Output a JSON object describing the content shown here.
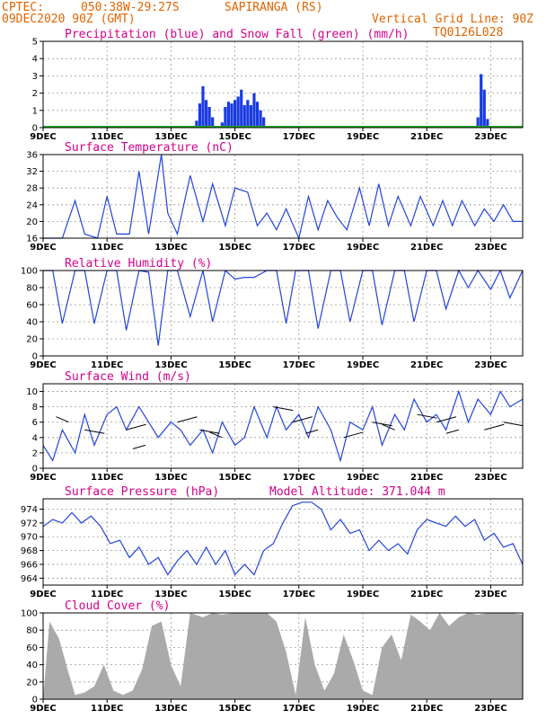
{
  "header": {
    "source": "CPTEC:",
    "coords": "050:38W-29:27S",
    "location": "SAPIRANGA (RS)",
    "run": "09DEC2020 90Z (GMT)",
    "grid_note": "Vertical Grid Line: 90Z",
    "code": "TQ0126L028"
  },
  "x_labels": [
    "9DEC",
    "11DEC",
    "13DEC",
    "15DEC",
    "17DEC",
    "19DEC",
    "21DEC",
    "23DEC"
  ],
  "colors": {
    "line": "#2244dd",
    "precip": "#1a3be0",
    "snow": "#22aa22",
    "cloud": "#aaaaaa",
    "title": "#d4008a",
    "header": "#e06400"
  },
  "chart_data": [
    {
      "id": "precip",
      "type": "bar",
      "title": "Precipitation (blue) and Snow Fall (green) (mm/h)",
      "ylim": [
        0,
        5
      ],
      "yticks": [
        0,
        1,
        2,
        3,
        4,
        5
      ],
      "series": [
        {
          "name": "Precipitation",
          "x": [
            13.8,
            13.9,
            14.0,
            14.1,
            14.2,
            14.3,
            14.6,
            14.7,
            14.8,
            14.9,
            15.0,
            15.1,
            15.2,
            15.3,
            15.4,
            15.5,
            15.6,
            15.7,
            15.8,
            15.9,
            22.6,
            22.7,
            22.8,
            22.9
          ],
          "values": [
            0.4,
            1.4,
            2.4,
            1.6,
            1.2,
            0.6,
            0.3,
            1.2,
            1.5,
            1.4,
            1.6,
            1.8,
            2.2,
            1.3,
            1.6,
            1.3,
            2.0,
            1.5,
            1.0,
            0.6,
            0.6,
            3.1,
            2.2,
            0.5
          ]
        },
        {
          "name": "Snow Fall",
          "values": [
            0
          ]
        }
      ]
    },
    {
      "id": "temp",
      "type": "line",
      "title": "Surface Temperature (nC)",
      "ylim": [
        16,
        36
      ],
      "yticks": [
        16,
        20,
        24,
        28,
        32,
        36
      ],
      "x": [
        9,
        9.6,
        10.0,
        10.3,
        10.7,
        11.0,
        11.3,
        11.7,
        12.0,
        12.3,
        12.7,
        12.9,
        13.2,
        13.6,
        14.0,
        14.3,
        14.7,
        15.0,
        15.4,
        15.7,
        16.0,
        16.3,
        16.6,
        17.0,
        17.3,
        17.6,
        17.9,
        18.2,
        18.5,
        18.9,
        19.2,
        19.5,
        19.8,
        20.1,
        20.5,
        20.8,
        21.2,
        21.5,
        21.8,
        22.1,
        22.5,
        22.8,
        23.1,
        23.4,
        23.7,
        24.0
      ],
      "y": [
        16,
        16,
        25,
        17,
        16,
        26,
        17,
        17,
        32,
        17,
        36,
        22,
        17,
        31,
        20,
        29,
        19,
        28,
        27,
        19,
        22,
        18,
        23,
        16,
        26,
        18,
        25,
        21,
        18,
        28,
        19,
        29,
        19,
        26,
        19,
        26,
        19,
        25,
        19,
        25,
        19,
        23,
        20,
        24,
        20,
        20
      ]
    },
    {
      "id": "rh",
      "type": "line",
      "title": "Relative Humidity (%)",
      "ylim": [
        0,
        100
      ],
      "yticks": [
        0,
        20,
        40,
        60,
        80,
        100
      ],
      "x": [
        9,
        9.3,
        9.6,
        10.0,
        10.3,
        10.6,
        11.0,
        11.3,
        11.6,
        12.0,
        12.3,
        12.6,
        12.9,
        13.2,
        13.6,
        14.0,
        14.3,
        14.7,
        15.0,
        15.3,
        15.6,
        16.0,
        16.3,
        16.6,
        16.9,
        17.3,
        17.6,
        18.0,
        18.3,
        18.6,
        19.0,
        19.3,
        19.6,
        20.0,
        20.3,
        20.6,
        21.0,
        21.3,
        21.6,
        22.0,
        22.3,
        22.6,
        23.0,
        23.3,
        23.6,
        24.0
      ],
      "y": [
        100,
        100,
        38,
        100,
        100,
        38,
        100,
        100,
        30,
        100,
        98,
        12,
        100,
        100,
        46,
        100,
        40,
        100,
        90,
        92,
        92,
        100,
        100,
        38,
        100,
        100,
        32,
        100,
        100,
        40,
        100,
        100,
        36,
        100,
        100,
        40,
        100,
        100,
        55,
        100,
        80,
        100,
        78,
        100,
        68,
        100
      ]
    },
    {
      "id": "wind",
      "type": "line",
      "title": "Surface Wind (m/s)",
      "ylim": [
        0,
        11
      ],
      "yticks": [
        0,
        2,
        4,
        6,
        8,
        10
      ],
      "x": [
        9,
        9.3,
        9.6,
        10.0,
        10.3,
        10.6,
        11.0,
        11.3,
        11.6,
        12.0,
        12.3,
        12.6,
        13.0,
        13.3,
        13.6,
        14.0,
        14.3,
        14.6,
        15.0,
        15.3,
        15.6,
        16.0,
        16.3,
        16.6,
        17.0,
        17.3,
        17.6,
        18.0,
        18.3,
        18.6,
        19.0,
        19.3,
        19.6,
        20.0,
        20.3,
        20.6,
        21.0,
        21.3,
        21.6,
        22.0,
        22.3,
        22.6,
        23.0,
        23.3,
        23.6,
        24.0
      ],
      "y": [
        3,
        1,
        5,
        2,
        7,
        3,
        7,
        8,
        5,
        8,
        6,
        4,
        6,
        5,
        3,
        5,
        2,
        6,
        3,
        4,
        8,
        4,
        8,
        5,
        7,
        4,
        8,
        5,
        1,
        6,
        5,
        8,
        3,
        7,
        5,
        9,
        6,
        7,
        5,
        10,
        6,
        9,
        7,
        10,
        8,
        9
      ]
    },
    {
      "id": "pressure",
      "type": "line",
      "title": "Surface Pressure (hPa)",
      "annotation": "Model Altitude: 371.044 m",
      "ylim": [
        963,
        975.5
      ],
      "yticks": [
        964,
        966,
        968,
        970,
        972,
        974
      ],
      "x": [
        9,
        9.3,
        9.6,
        9.9,
        10.2,
        10.5,
        10.8,
        11.1,
        11.4,
        11.7,
        12.0,
        12.3,
        12.6,
        12.9,
        13.2,
        13.5,
        13.8,
        14.1,
        14.4,
        14.7,
        15.0,
        15.3,
        15.6,
        15.9,
        16.2,
        16.5,
        16.8,
        17.1,
        17.4,
        17.7,
        18.0,
        18.3,
        18.6,
        18.9,
        19.2,
        19.5,
        19.8,
        20.1,
        20.4,
        20.7,
        21.0,
        21.3,
        21.6,
        21.9,
        22.2,
        22.5,
        22.8,
        23.1,
        23.4,
        23.7,
        24.0
      ],
      "y": [
        971.5,
        972.5,
        972,
        973.5,
        972,
        973,
        971.5,
        969,
        969.5,
        967,
        968.5,
        966,
        967,
        964.5,
        966.5,
        968,
        966,
        968.5,
        966,
        968,
        964.5,
        966,
        964.5,
        968,
        969,
        972,
        974.5,
        975,
        975,
        974,
        971,
        972.5,
        970.5,
        971,
        968,
        969.5,
        968,
        969,
        967.5,
        971,
        972.5,
        972,
        971.5,
        973,
        971.5,
        972.5,
        969.5,
        970.5,
        968.5,
        969,
        966
      ]
    },
    {
      "id": "cloud",
      "type": "area",
      "title": "Cloud Cover (%)",
      "ylim": [
        0,
        100
      ],
      "yticks": [
        0,
        20,
        40,
        60,
        80,
        100
      ],
      "x": [
        9,
        9.2,
        9.5,
        9.8,
        10.0,
        10.3,
        10.6,
        10.9,
        11.2,
        11.5,
        11.8,
        12.1,
        12.4,
        12.7,
        13.0,
        13.3,
        13.6,
        14.0,
        14.3,
        14.6,
        15.0,
        15.3,
        15.6,
        16.0,
        16.3,
        16.6,
        16.9,
        17.2,
        17.5,
        17.8,
        18.1,
        18.4,
        18.7,
        19.0,
        19.3,
        19.6,
        19.9,
        20.2,
        20.5,
        20.8,
        21.1,
        21.4,
        21.7,
        22.0,
        22.3,
        22.6,
        23.0,
        23.3,
        23.6,
        24.0
      ],
      "y": [
        0,
        90,
        70,
        30,
        5,
        8,
        15,
        40,
        10,
        5,
        10,
        35,
        85,
        90,
        40,
        15,
        100,
        95,
        100,
        98,
        100,
        100,
        100,
        100,
        90,
        55,
        5,
        95,
        40,
        10,
        30,
        75,
        45,
        10,
        5,
        60,
        75,
        45,
        98,
        90,
        80,
        100,
        85,
        95,
        100,
        98,
        100,
        100,
        100,
        98
      ]
    }
  ]
}
